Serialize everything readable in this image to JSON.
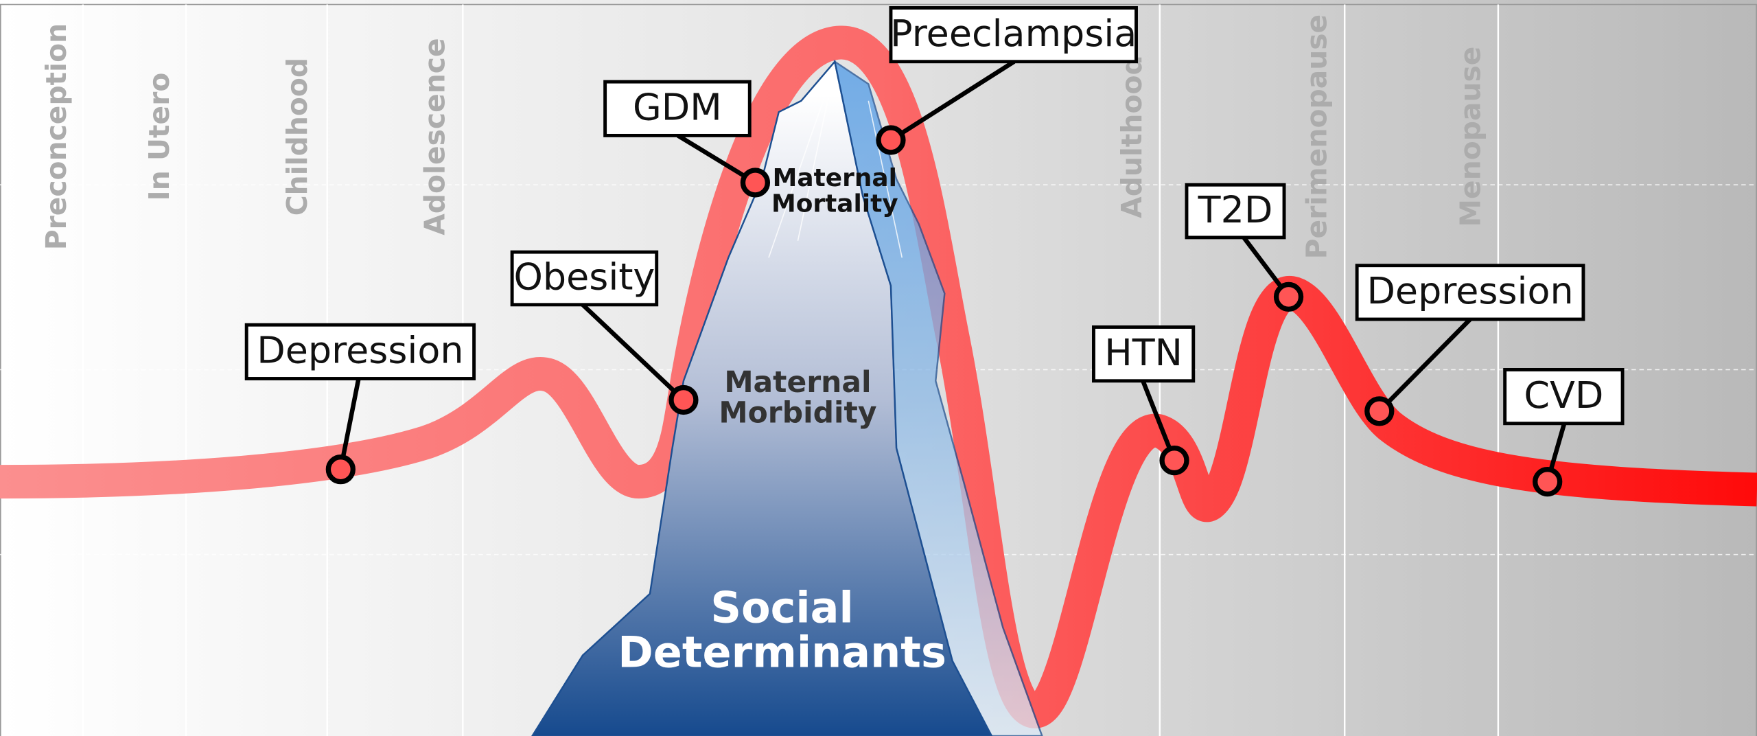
{
  "stages": [
    "Preconception",
    "In Utero",
    "Childhood",
    "Adolescence",
    "Adulthood",
    "Perimenopause",
    "Menopause"
  ],
  "mountain": {
    "mortality": [
      "Maternal",
      "Mortality"
    ],
    "morbidity": [
      "Maternal",
      "Morbidity"
    ],
    "social": [
      "Social",
      "Determinants"
    ]
  },
  "callouts": [
    "Depression",
    "Obesity",
    "GDM",
    "Preeclampsia",
    "HTN",
    "T2D",
    "Depression",
    "CVD"
  ]
}
